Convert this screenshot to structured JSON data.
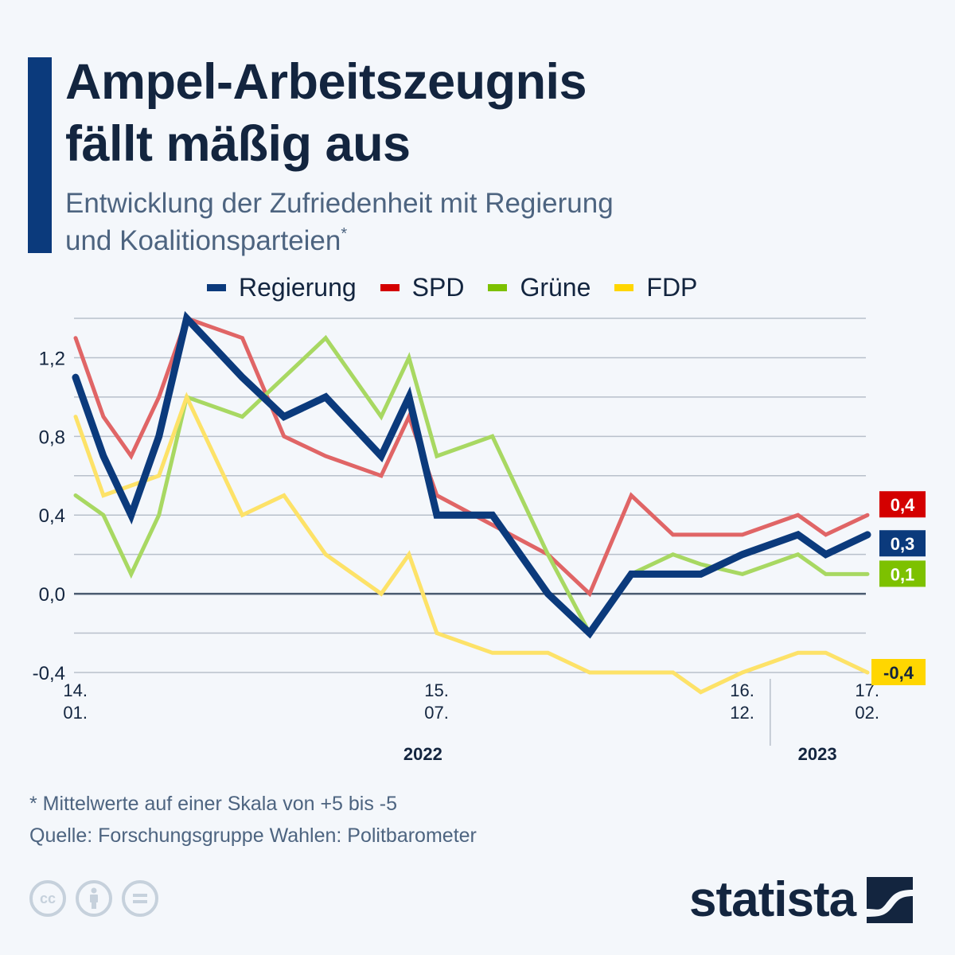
{
  "header": {
    "title_line1": "Ampel-Arbeitszeugnis",
    "title_line2": "fällt mäßig aus",
    "subtitle_line1": "Entwicklung der Zufriedenheit mit Regierung",
    "subtitle_line2": "und Koalitionsparteien",
    "subtitle_marker": "*"
  },
  "footer": {
    "note": "* Mittelwerte auf einer Skala von +5 bis -5",
    "source": "Quelle: Forschungsgruppe Wahlen: Politbarometer",
    "license_icons": [
      "cc-icon",
      "attribution-icon",
      "no-derivatives-icon"
    ],
    "brand": "statista"
  },
  "chart_data": {
    "type": "line",
    "title": "Ampel-Arbeitszeugnis fällt mäßig aus",
    "subtitle": "Entwicklung der Zufriedenheit mit Regierung und Koalitionsparteien*",
    "xlabel": "",
    "ylabel": "",
    "ylim": [
      -0.4,
      1.4
    ],
    "yticks": [
      {
        "value": 1.2,
        "label": "1,2"
      },
      {
        "value": 0.8,
        "label": "0,8"
      },
      {
        "value": 0.4,
        "label": "0,4"
      },
      {
        "value": 0.0,
        "label": "0,0"
      },
      {
        "value": -0.4,
        "label": "-0,4"
      }
    ],
    "gridlines": [
      1.4,
      1.2,
      1.0,
      0.8,
      0.6,
      0.4,
      0.2,
      0.0,
      -0.2,
      -0.4
    ],
    "grid": true,
    "legend_position": "top",
    "x_index": [
      0,
      1,
      2,
      3,
      4,
      6,
      7.5,
      9,
      11,
      12,
      13,
      15,
      17,
      18.5,
      20,
      21.5,
      22.5,
      24,
      26,
      27,
      28.5
    ],
    "x_range": [
      0,
      28.5
    ],
    "xtick_labels": [
      {
        "index": 0,
        "line1": "14.",
        "line2": "01."
      },
      {
        "index": 13,
        "line1": "15.",
        "line2": "07."
      },
      {
        "index": 24,
        "line1": "16.",
        "line2": "12."
      },
      {
        "index": 28.5,
        "line1": "17.",
        "line2": "02."
      }
    ],
    "year_labels": [
      {
        "index": 12.5,
        "label": "2022"
      },
      {
        "index": 26.7,
        "label": "2023"
      }
    ],
    "year_separator_index": 25,
    "series": [
      {
        "name": "Regierung",
        "color": "#0b3a7c",
        "line_color": "#0b3a7c",
        "width": "thick",
        "values": [
          1.1,
          0.7,
          0.4,
          0.8,
          1.4,
          1.1,
          0.9,
          1.0,
          0.7,
          1.0,
          0.4,
          0.4,
          0.0,
          -0.2,
          0.1,
          0.1,
          0.1,
          0.2,
          0.3,
          0.2,
          0.3
        ],
        "end_label": "0,3",
        "end_label_text_color": "#ffffff"
      },
      {
        "name": "SPD",
        "color": "#d40000",
        "line_color": "#e06566",
        "width": "thin",
        "values": [
          1.3,
          0.9,
          0.7,
          1.0,
          1.4,
          1.3,
          0.8,
          0.7,
          0.6,
          0.9,
          0.5,
          0.35,
          0.2,
          0.0,
          0.5,
          0.3,
          0.3,
          0.3,
          0.4,
          0.3,
          0.4
        ],
        "end_label": "0,4",
        "end_label_text_color": "#ffffff"
      },
      {
        "name": "Grüne",
        "color": "#7dc100",
        "line_color": "#a8d862",
        "width": "thin",
        "values": [
          0.5,
          0.4,
          0.1,
          0.4,
          1.0,
          0.9,
          1.1,
          1.3,
          0.9,
          1.2,
          0.7,
          0.8,
          0.2,
          -0.2,
          0.1,
          0.2,
          0.15,
          0.1,
          0.2,
          0.1,
          0.1
        ],
        "end_label": "0,1",
        "end_label_text_color": "#ffffff"
      },
      {
        "name": "FDP",
        "color": "#ffd600",
        "line_color": "#fde268",
        "width": "thin",
        "values": [
          0.9,
          0.5,
          0.55,
          0.6,
          1.0,
          0.4,
          0.5,
          0.2,
          0.0,
          0.2,
          -0.2,
          -0.3,
          -0.3,
          -0.4,
          -0.4,
          -0.4,
          -0.5,
          -0.4,
          -0.3,
          -0.3,
          -0.4
        ],
        "end_label": "-0,4",
        "end_label_text_color": "#13253f"
      }
    ]
  }
}
